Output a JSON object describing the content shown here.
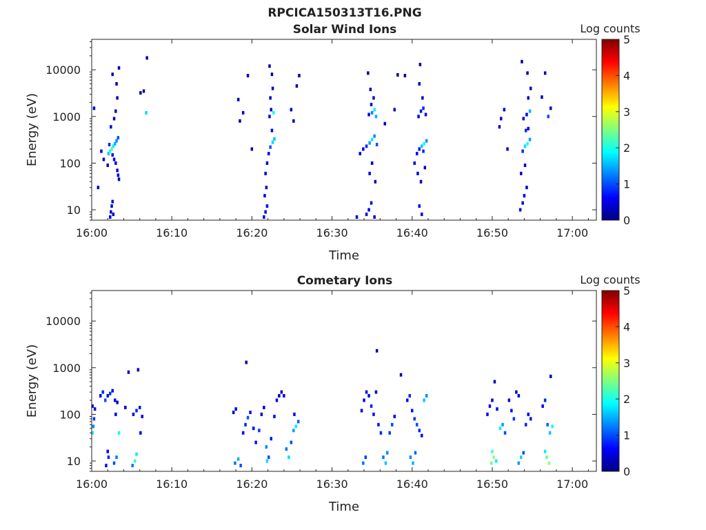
{
  "figure_title": "RPCICA150313T16.PNG",
  "colorbar": {
    "label": "Log counts",
    "ticks": [
      "0",
      "1",
      "2",
      "3",
      "4",
      "5"
    ],
    "range": [
      0,
      5
    ],
    "colormap": "jet"
  },
  "chart_data": [
    {
      "type": "heatmap",
      "title": "Solar Wind Ions",
      "xlabel": "Time",
      "ylabel": "Energy (eV)",
      "xtick_labels": [
        "16:00",
        "16:10",
        "16:20",
        "16:30",
        "16:40",
        "16:50",
        "17:00"
      ],
      "ytick_labels": [
        "10",
        "100",
        "1000",
        "10000"
      ],
      "xlim_minutes": [
        0,
        63
      ],
      "ylim_eV": [
        6,
        45000
      ],
      "yscale": "log",
      "grid": false,
      "cells": [
        [
          2.3,
          7,
          0.5
        ],
        [
          2.4,
          9,
          0.6
        ],
        [
          2.5,
          12,
          0.4
        ],
        [
          2.6,
          15,
          0.5
        ],
        [
          2.7,
          8,
          0.3
        ],
        [
          2.1,
          160,
          1.6
        ],
        [
          2.3,
          180,
          2.0
        ],
        [
          2.5,
          200,
          2.2
        ],
        [
          2.7,
          230,
          1.8
        ],
        [
          2.9,
          260,
          1.5
        ],
        [
          3.1,
          300,
          1.3
        ],
        [
          3.3,
          350,
          1.0
        ],
        [
          2.2,
          250,
          0.8
        ],
        [
          2.6,
          150,
          0.7
        ],
        [
          2.8,
          120,
          0.6
        ],
        [
          3.0,
          100,
          0.5
        ],
        [
          3.2,
          70,
          0.4
        ],
        [
          3.4,
          45,
          0.3
        ],
        [
          3.3,
          55,
          0.4
        ],
        [
          2.4,
          600,
          0.4
        ],
        [
          2.8,
          900,
          0.3
        ],
        [
          3.0,
          1300,
          0.4
        ],
        [
          3.2,
          2500,
          0.3
        ],
        [
          3.1,
          5000,
          0.2
        ],
        [
          2.6,
          8000,
          0.2
        ],
        [
          3.4,
          11000,
          0.2
        ],
        [
          1.2,
          180,
          0.5
        ],
        [
          0.3,
          1500,
          0.3
        ],
        [
          0.8,
          30,
          0.3
        ],
        [
          1.5,
          120,
          0.4
        ],
        [
          2.0,
          90,
          0.3
        ],
        [
          6.1,
          3200,
          0.3
        ],
        [
          6.5,
          3500,
          0.2
        ],
        [
          6.8,
          1200,
          1.7
        ],
        [
          6.9,
          18000,
          0.3
        ],
        [
          21.5,
          7,
          0.5
        ],
        [
          21.7,
          9,
          0.6
        ],
        [
          21.9,
          12,
          0.5
        ],
        [
          21.6,
          20,
          0.5
        ],
        [
          21.8,
          30,
          0.4
        ],
        [
          21.7,
          60,
          0.4
        ],
        [
          21.9,
          100,
          0.3
        ],
        [
          22.1,
          160,
          0.5
        ],
        [
          22.3,
          220,
          1.0
        ],
        [
          22.6,
          280,
          1.7
        ],
        [
          22.8,
          330,
          1.6
        ],
        [
          22.5,
          500,
          0.6
        ],
        [
          22.2,
          1000,
          0.5
        ],
        [
          22.4,
          1400,
          0.4
        ],
        [
          22.7,
          1200,
          1.9
        ],
        [
          22.3,
          2500,
          0.3
        ],
        [
          22.6,
          4000,
          0.3
        ],
        [
          22.5,
          8000,
          0.2
        ],
        [
          22.2,
          12000,
          0.2
        ],
        [
          18.5,
          800,
          0.3
        ],
        [
          18.9,
          1200,
          0.3
        ],
        [
          19.5,
          7500,
          0.2
        ],
        [
          18.3,
          2300,
          0.2
        ],
        [
          20.0,
          200,
          0.3
        ],
        [
          24.9,
          1400,
          0.3
        ],
        [
          25.2,
          800,
          0.3
        ],
        [
          25.6,
          4500,
          0.2
        ],
        [
          25.9,
          7500,
          0.2
        ],
        [
          33.1,
          7,
          0.4
        ],
        [
          34.3,
          8,
          0.5
        ],
        [
          34.6,
          10,
          0.6
        ],
        [
          34.9,
          14,
          0.5
        ],
        [
          35.3,
          7,
          0.4
        ],
        [
          33.5,
          160,
          0.4
        ],
        [
          33.9,
          200,
          0.6
        ],
        [
          34.3,
          230,
          0.8
        ],
        [
          34.7,
          270,
          1.4
        ],
        [
          35.0,
          320,
          1.8
        ],
        [
          35.3,
          380,
          1.3
        ],
        [
          35.6,
          250,
          1.0
        ],
        [
          34.6,
          1100,
          0.6
        ],
        [
          35.0,
          1200,
          1.3
        ],
        [
          35.3,
          1400,
          1.8
        ],
        [
          35.5,
          1000,
          1.5
        ],
        [
          34.9,
          1800,
          0.5
        ],
        [
          35.2,
          2500,
          0.4
        ],
        [
          34.8,
          3800,
          0.3
        ],
        [
          35.0,
          100,
          0.4
        ],
        [
          34.7,
          60,
          0.4
        ],
        [
          35.4,
          40,
          0.3
        ],
        [
          34.5,
          8500,
          0.2
        ],
        [
          36.6,
          700,
          0.3
        ],
        [
          37.8,
          1400,
          0.3
        ],
        [
          38.2,
          7800,
          0.2
        ],
        [
          40.3,
          100,
          0.5
        ],
        [
          40.6,
          160,
          0.6
        ],
        [
          40.9,
          200,
          0.7
        ],
        [
          41.2,
          230,
          1.6
        ],
        [
          41.5,
          260,
          1.9
        ],
        [
          41.8,
          300,
          1.3
        ],
        [
          41.4,
          180,
          0.8
        ],
        [
          40.8,
          1000,
          0.5
        ],
        [
          41.1,
          1300,
          0.7
        ],
        [
          41.4,
          1500,
          0.8
        ],
        [
          41.7,
          1100,
          0.6
        ],
        [
          41.3,
          2500,
          0.4
        ],
        [
          40.9,
          5000,
          0.3
        ],
        [
          41.0,
          13000,
          0.2
        ],
        [
          40.7,
          60,
          0.4
        ],
        [
          41.1,
          40,
          0.3
        ],
        [
          41.6,
          80,
          0.3
        ],
        [
          40.9,
          12,
          0.6
        ],
        [
          41.2,
          8,
          0.5
        ],
        [
          39.1,
          7500,
          0.2
        ],
        [
          53.5,
          10,
          0.6
        ],
        [
          53.8,
          14,
          0.5
        ],
        [
          54.0,
          20,
          0.4
        ],
        [
          54.3,
          30,
          0.3
        ],
        [
          53.6,
          60,
          0.4
        ],
        [
          54.1,
          90,
          0.4
        ],
        [
          53.8,
          180,
          0.8
        ],
        [
          54.1,
          230,
          1.7
        ],
        [
          54.4,
          260,
          2.0
        ],
        [
          54.7,
          320,
          1.4
        ],
        [
          54.2,
          500,
          0.8
        ],
        [
          54.5,
          550,
          0.6
        ],
        [
          53.9,
          900,
          0.4
        ],
        [
          54.3,
          1100,
          0.5
        ],
        [
          54.7,
          1300,
          1.5
        ],
        [
          54.5,
          2500,
          0.3
        ],
        [
          54.8,
          4000,
          0.3
        ],
        [
          54.4,
          8500,
          0.2
        ],
        [
          53.7,
          15000,
          0.2
        ],
        [
          51.1,
          900,
          0.3
        ],
        [
          51.5,
          1400,
          0.3
        ],
        [
          50.9,
          600,
          0.3
        ],
        [
          51.9,
          200,
          0.4
        ],
        [
          56.2,
          2600,
          0.3
        ],
        [
          56.6,
          8500,
          0.2
        ],
        [
          57.0,
          1000,
          1.0
        ],
        [
          57.3,
          1500,
          0.3
        ]
      ]
    },
    {
      "type": "heatmap",
      "title": "Cometary Ions",
      "xlabel": "Time",
      "ylabel": "Energy (eV)",
      "xtick_labels": [
        "16:00",
        "16:10",
        "16:20",
        "16:30",
        "16:40",
        "16:50",
        "17:00"
      ],
      "ytick_labels": [
        "10",
        "100",
        "1000",
        "10000"
      ],
      "xlim_minutes": [
        0,
        63
      ],
      "ylim_eV": [
        6,
        45000
      ],
      "yscale": "log",
      "grid": false,
      "cells": [
        [
          0.1,
          40,
          1.8
        ],
        [
          0.2,
          55,
          1.3
        ],
        [
          0.3,
          80,
          0.9
        ],
        [
          0.4,
          130,
          0.5
        ],
        [
          0.1,
          150,
          0.4
        ],
        [
          1.1,
          250,
          0.6
        ],
        [
          1.4,
          300,
          0.8
        ],
        [
          1.7,
          200,
          1.0
        ],
        [
          2.0,
          250,
          0.7
        ],
        [
          2.3,
          280,
          0.9
        ],
        [
          2.6,
          320,
          0.6
        ],
        [
          2.9,
          200,
          0.5
        ],
        [
          3.2,
          180,
          0.4
        ],
        [
          1.8,
          8,
          0.7
        ],
        [
          2.1,
          12,
          0.8
        ],
        [
          2.0,
          16,
          0.6
        ],
        [
          2.8,
          9,
          1.0
        ],
        [
          3.1,
          12,
          1.2
        ],
        [
          3.4,
          40,
          1.9
        ],
        [
          3.0,
          100,
          0.5
        ],
        [
          4.2,
          140,
          0.3
        ],
        [
          4.6,
          800,
          0.3
        ],
        [
          5.8,
          900,
          0.3
        ],
        [
          5.1,
          8,
          1.2
        ],
        [
          5.4,
          10,
          2.1
        ],
        [
          5.6,
          14,
          1.8
        ],
        [
          5.2,
          100,
          0.6
        ],
        [
          5.6,
          120,
          0.8
        ],
        [
          6.0,
          140,
          0.7
        ],
        [
          6.3,
          90,
          0.5
        ],
        [
          6.1,
          40,
          0.6
        ],
        [
          17.7,
          110,
          0.4
        ],
        [
          18.0,
          130,
          0.5
        ],
        [
          17.9,
          9,
          1.2
        ],
        [
          18.3,
          11,
          1.5
        ],
        [
          18.6,
          8,
          1.0
        ],
        [
          18.9,
          40,
          0.6
        ],
        [
          19.2,
          60,
          0.8
        ],
        [
          19.5,
          85,
          1.0
        ],
        [
          19.8,
          110,
          0.7
        ],
        [
          20.2,
          50,
          0.6
        ],
        [
          20.5,
          25,
          0.7
        ],
        [
          20.9,
          45,
          0.9
        ],
        [
          21.2,
          100,
          0.5
        ],
        [
          21.5,
          140,
          0.4
        ],
        [
          21.8,
          20,
          1.3
        ],
        [
          21.9,
          10,
          1.7
        ],
        [
          22.1,
          12,
          1.0
        ],
        [
          22.4,
          30,
          0.7
        ],
        [
          22.8,
          90,
          0.6
        ],
        [
          23.1,
          200,
          0.5
        ],
        [
          23.4,
          250,
          0.4
        ],
        [
          23.7,
          300,
          0.4
        ],
        [
          24.0,
          250,
          0.5
        ],
        [
          24.3,
          18,
          1.2
        ],
        [
          24.6,
          12,
          1.7
        ],
        [
          24.9,
          25,
          1.0
        ],
        [
          25.2,
          45,
          1.4
        ],
        [
          25.5,
          55,
          1.8
        ],
        [
          25.8,
          70,
          1.1
        ],
        [
          25.3,
          100,
          0.6
        ],
        [
          19.3,
          1300,
          0.2
        ],
        [
          33.9,
          9,
          1.2
        ],
        [
          34.2,
          12,
          0.9
        ],
        [
          33.7,
          120,
          0.5
        ],
        [
          34.0,
          200,
          0.6
        ],
        [
          34.3,
          300,
          0.5
        ],
        [
          34.6,
          250,
          0.6
        ],
        [
          34.9,
          150,
          0.8
        ],
        [
          35.2,
          100,
          0.7
        ],
        [
          35.5,
          300,
          0.5
        ],
        [
          35.8,
          60,
          0.7
        ],
        [
          36.1,
          40,
          0.8
        ],
        [
          36.4,
          12,
          1.2
        ],
        [
          36.7,
          9,
          1.6
        ],
        [
          36.9,
          15,
          1.3
        ],
        [
          37.2,
          40,
          0.9
        ],
        [
          37.5,
          60,
          1.0
        ],
        [
          37.8,
          90,
          0.6
        ],
        [
          35.6,
          2300,
          0.2
        ],
        [
          39.4,
          200,
          0.6
        ],
        [
          39.7,
          250,
          0.8
        ],
        [
          40.0,
          120,
          0.7
        ],
        [
          40.3,
          80,
          0.9
        ],
        [
          40.6,
          60,
          1.0
        ],
        [
          40.9,
          45,
          0.8
        ],
        [
          41.2,
          35,
          0.6
        ],
        [
          39.8,
          12,
          1.3
        ],
        [
          40.1,
          9,
          1.5
        ],
        [
          40.4,
          15,
          1.1
        ],
        [
          41.5,
          200,
          1.6
        ],
        [
          41.8,
          250,
          1.3
        ],
        [
          38.6,
          700,
          0.3
        ],
        [
          49.4,
          100,
          0.6
        ],
        [
          49.7,
          150,
          0.7
        ],
        [
          50.0,
          200,
          0.5
        ],
        [
          50.3,
          500,
          0.3
        ],
        [
          50.6,
          130,
          0.6
        ],
        [
          49.9,
          9,
          2.4
        ],
        [
          50.2,
          12,
          2.6
        ],
        [
          50.0,
          16,
          2.2
        ],
        [
          50.5,
          10,
          1.8
        ],
        [
          51.0,
          50,
          1.8
        ],
        [
          51.3,
          60,
          1.4
        ],
        [
          51.6,
          40,
          1.0
        ],
        [
          52.1,
          200,
          0.5
        ],
        [
          52.4,
          120,
          0.7
        ],
        [
          52.7,
          80,
          0.9
        ],
        [
          53.0,
          300,
          0.4
        ],
        [
          53.3,
          250,
          0.5
        ],
        [
          53.3,
          9,
          1.4
        ],
        [
          53.6,
          12,
          1.7
        ],
        [
          53.9,
          15,
          1.0
        ],
        [
          54.2,
          60,
          0.8
        ],
        [
          54.5,
          100,
          0.6
        ],
        [
          54.8,
          80,
          0.7
        ],
        [
          56.3,
          150,
          0.6
        ],
        [
          56.6,
          200,
          0.8
        ],
        [
          56.9,
          60,
          1.1
        ],
        [
          57.2,
          40,
          1.6
        ],
        [
          57.5,
          55,
          1.9
        ],
        [
          56.8,
          12,
          2.4
        ],
        [
          57.1,
          9,
          2.6
        ],
        [
          56.6,
          16,
          1.8
        ],
        [
          57.3,
          650,
          0.3
        ]
      ]
    }
  ]
}
